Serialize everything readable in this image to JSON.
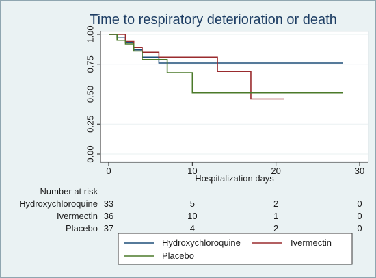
{
  "chart_data": {
    "type": "line",
    "title": "Time to respiratory deterioration or death",
    "xlabel": "Hospitalization days",
    "ylabel": "",
    "xlim": [
      0,
      30
    ],
    "ylim": [
      0,
      1
    ],
    "x_ticks": [
      "0",
      "10",
      "20",
      "30"
    ],
    "y_ticks": [
      "0.00",
      "0.25",
      "0.50",
      "0.75",
      "1.00"
    ],
    "x_tick_values": [
      0,
      10,
      20,
      30
    ],
    "y_tick_values": [
      0,
      0.25,
      0.5,
      0.75,
      1.0
    ],
    "grid": true,
    "step": true,
    "series": [
      {
        "name": "Hydroxychloroquine",
        "color": "#1f4e79",
        "x": [
          0,
          1,
          2,
          3,
          4,
          6,
          28
        ],
        "y": [
          1.0,
          0.97,
          0.93,
          0.87,
          0.81,
          0.76,
          0.76
        ]
      },
      {
        "name": "Ivermectin",
        "color": "#9a2b2e",
        "x": [
          0,
          2,
          3,
          4,
          6,
          13,
          17,
          21
        ],
        "y": [
          1.0,
          0.94,
          0.89,
          0.85,
          0.81,
          0.69,
          0.46,
          0.46
        ]
      },
      {
        "name": "Placebo",
        "color": "#4b7a2a",
        "x": [
          0,
          1,
          2,
          3,
          4,
          7,
          10,
          28
        ],
        "y": [
          1.0,
          0.95,
          0.92,
          0.86,
          0.79,
          0.68,
          0.51,
          0.51
        ]
      }
    ],
    "legend_position": "bottom",
    "risk_table": {
      "header": "Number at risk",
      "times": [
        0,
        10,
        20,
        30
      ],
      "rows": [
        {
          "label": "Hydroxychloroquine",
          "counts": [
            "33",
            "5",
            "2",
            "0"
          ]
        },
        {
          "label": "Ivermectin",
          "counts": [
            "36",
            "10",
            "1",
            "0"
          ]
        },
        {
          "label": "Placebo",
          "counts": [
            "37",
            "4",
            "2",
            "0"
          ]
        }
      ]
    }
  }
}
